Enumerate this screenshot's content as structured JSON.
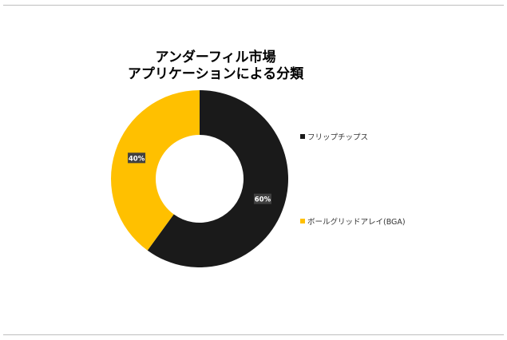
{
  "chart_data": {
    "type": "pie",
    "donut": true,
    "title_lines": [
      "アンダーフィル市場",
      "アプリケーションによる分類"
    ],
    "categories": [
      "フリップチップス",
      "ボールグリッドアレイ(BGA)"
    ],
    "values": [
      60,
      40
    ],
    "value_labels": [
      "60%",
      "40%"
    ],
    "colors": [
      "#1a1a1a",
      "#ffc000"
    ],
    "legend_position": "right"
  }
}
